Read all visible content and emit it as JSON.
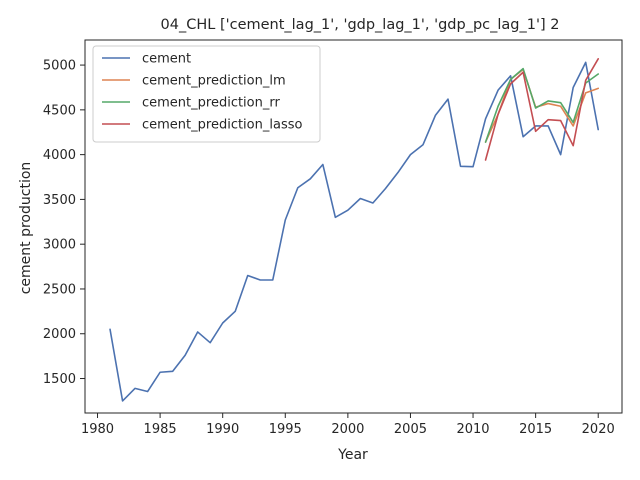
{
  "chart_data": {
    "type": "line",
    "title": "04_CHL ['cement_lag_1', 'gdp_lag_1', 'gdp_pc_lag_1'] 2",
    "xlabel": "Year",
    "ylabel": "cement production",
    "xlim": [
      1979.0,
      2021.9
    ],
    "ylim": [
      1115,
      5280
    ],
    "xticks": [
      1980,
      1985,
      1990,
      1995,
      2000,
      2005,
      2010,
      2015,
      2020
    ],
    "yticks": [
      1500,
      2000,
      2500,
      3000,
      3500,
      4000,
      4500,
      5000
    ],
    "grid": false,
    "legend_position": "upper-left",
    "series": [
      {
        "name": "cement",
        "color": "#4c72b0",
        "x": [
          1981,
          1982,
          1983,
          1984,
          1985,
          1986,
          1987,
          1988,
          1989,
          1990,
          1991,
          1992,
          1993,
          1994,
          1995,
          1996,
          1997,
          1998,
          1999,
          2000,
          2001,
          2002,
          2003,
          2004,
          2005,
          2006,
          2007,
          2008,
          2009,
          2010,
          2011,
          2012,
          2013,
          2014,
          2015,
          2016,
          2017,
          2018,
          2019,
          2020
        ],
        "y": [
          2050,
          1250,
          1390,
          1355,
          1570,
          1580,
          1760,
          2020,
          1900,
          2120,
          2250,
          2650,
          2600,
          2600,
          3270,
          3630,
          3730,
          3890,
          3300,
          3380,
          3510,
          3460,
          3620,
          3800,
          4000,
          4110,
          4440,
          4620,
          3870,
          3865,
          4400,
          4720,
          4880,
          4200,
          4320,
          4320,
          4000,
          4750,
          5030,
          4280
        ]
      },
      {
        "name": "cement_prediction_lm",
        "color": "#dd8452",
        "x": [
          2011,
          2012,
          2013,
          2014,
          2015,
          2016,
          2017,
          2018,
          2019,
          2020
        ],
        "y": [
          4140,
          4450,
          4840,
          4950,
          4530,
          4570,
          4540,
          4320,
          4690,
          4740
        ]
      },
      {
        "name": "cement_prediction_rr",
        "color": "#55a868",
        "x": [
          2011,
          2012,
          2013,
          2014,
          2015,
          2016,
          2017,
          2018,
          2019,
          2020
        ],
        "y": [
          4140,
          4540,
          4840,
          4960,
          4520,
          4600,
          4580,
          4360,
          4800,
          4900
        ]
      },
      {
        "name": "cement_prediction_lasso",
        "color": "#c44e52",
        "x": [
          2011,
          2012,
          2013,
          2014,
          2015,
          2016,
          2017,
          2018,
          2019,
          2020
        ],
        "y": [
          3940,
          4450,
          4790,
          4920,
          4260,
          4390,
          4380,
          4100,
          4830,
          5070
        ]
      }
    ]
  }
}
